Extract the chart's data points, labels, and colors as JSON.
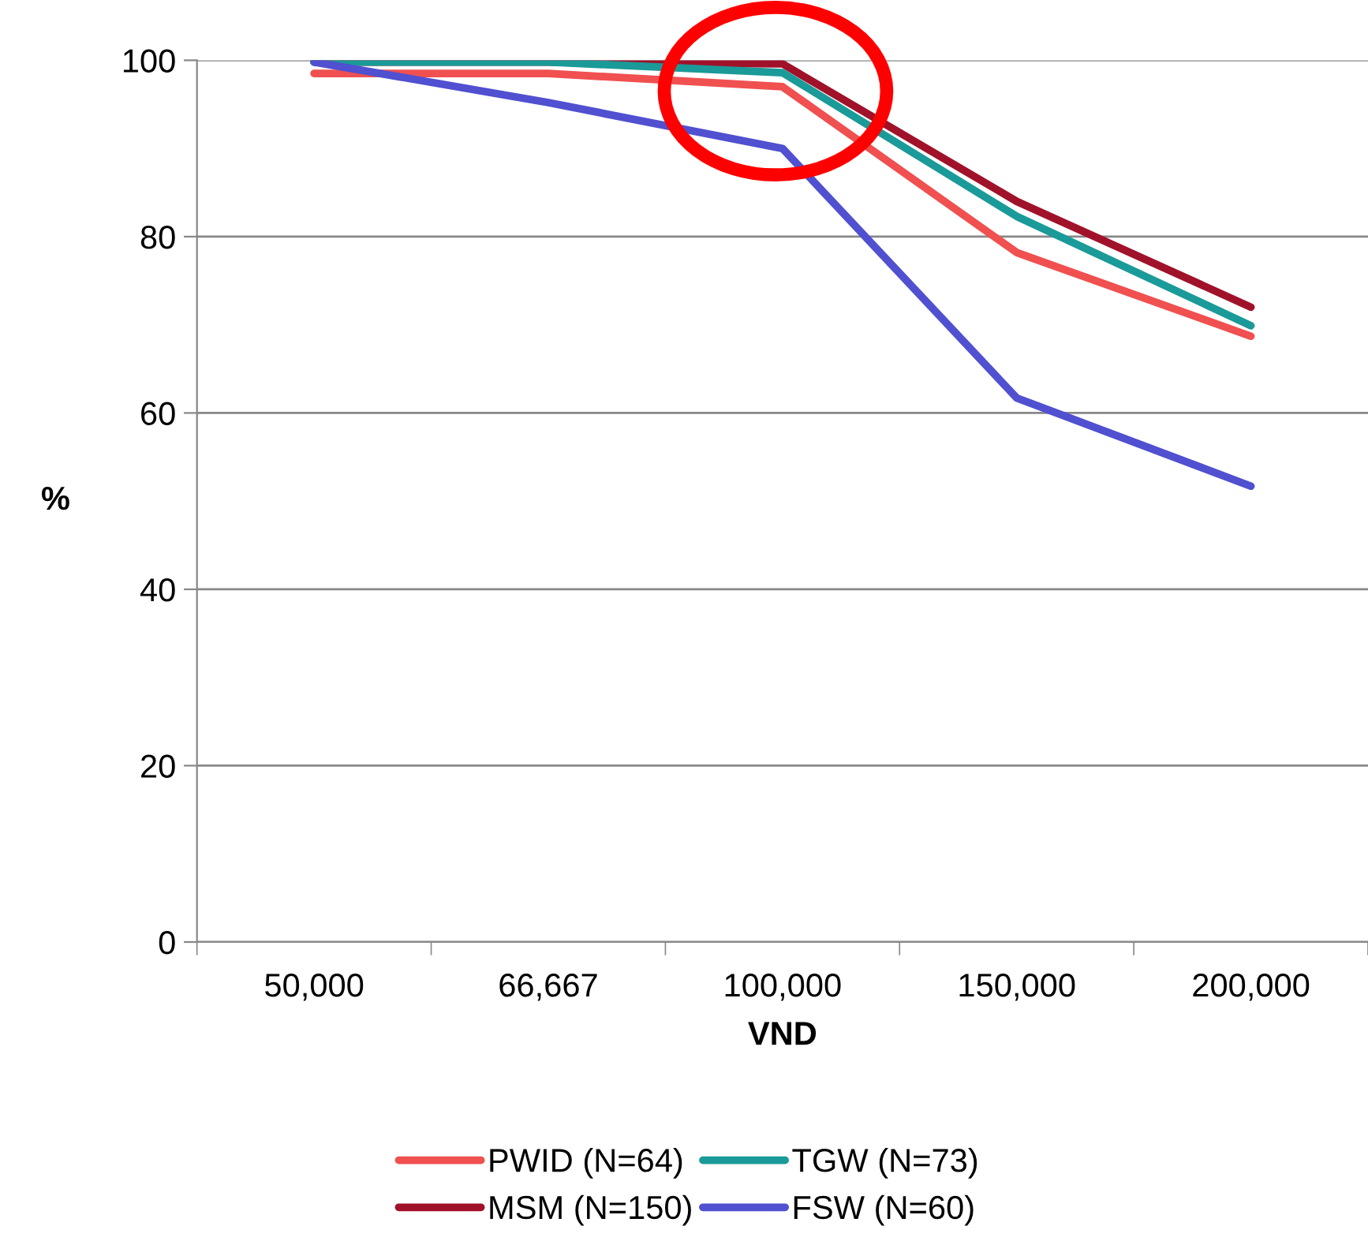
{
  "chart_data": {
    "type": "line",
    "xlabel": "VND",
    "ylabel": "%",
    "categories": [
      "50,000",
      "66,667",
      "100,000",
      "150,000",
      "200,000"
    ],
    "series": [
      {
        "name": "PWID (N=64)",
        "color": "#f05050",
        "values": [
          98.5,
          98.5,
          97,
          78.2,
          68.7
        ]
      },
      {
        "name": "MSM (N=150)",
        "color": "#a0122a",
        "values": [
          99.8,
          99.8,
          99.6,
          84,
          72
        ]
      },
      {
        "name": "TGW (N=73)",
        "color": "#1a9a98",
        "values": [
          99.8,
          99.8,
          98.6,
          82.3,
          69.9
        ]
      },
      {
        "name": "FSW (N=60)",
        "color": "#5050d0",
        "values": [
          99.8,
          95.2,
          90,
          61.7,
          51.7
        ]
      }
    ],
    "ylim": [
      0,
      100
    ],
    "yticks": [
      0,
      20,
      40,
      60,
      80,
      100
    ],
    "grid": "y",
    "legend": "bottom",
    "marker": "none",
    "line_style": "solid"
  }
}
